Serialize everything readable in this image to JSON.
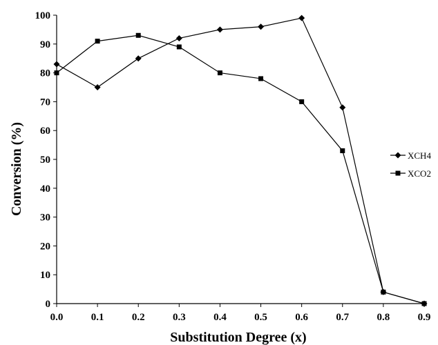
{
  "chart_data": {
    "type": "line",
    "title": "",
    "xlabel": "Substitution Degree (x)",
    "ylabel": "Conversion (%)",
    "x": [
      0.0,
      0.1,
      0.2,
      0.3,
      0.4,
      0.5,
      0.6,
      0.7,
      0.8,
      0.9
    ],
    "x_tick_labels": [
      "0.0",
      "0.1",
      "0.2",
      "0.3",
      "0.4",
      "0.5",
      "0.6",
      "0.7",
      "0.8",
      "0.9"
    ],
    "y_tick_labels": [
      "0",
      "10",
      "20",
      "30",
      "40",
      "50",
      "60",
      "70",
      "80",
      "90",
      "100"
    ],
    "xlim": [
      0,
      0.9
    ],
    "ylim": [
      0,
      100
    ],
    "grid": false,
    "legend_position": "right",
    "series": [
      {
        "name": "XCH4",
        "marker": "diamond",
        "color": "#000000",
        "values": [
          83,
          75,
          85,
          92,
          95,
          96,
          99,
          68,
          4,
          0
        ]
      },
      {
        "name": "XCO2",
        "marker": "square",
        "color": "#000000",
        "values": [
          80,
          91,
          93,
          89,
          80,
          78,
          70,
          53,
          4,
          0
        ]
      }
    ]
  }
}
